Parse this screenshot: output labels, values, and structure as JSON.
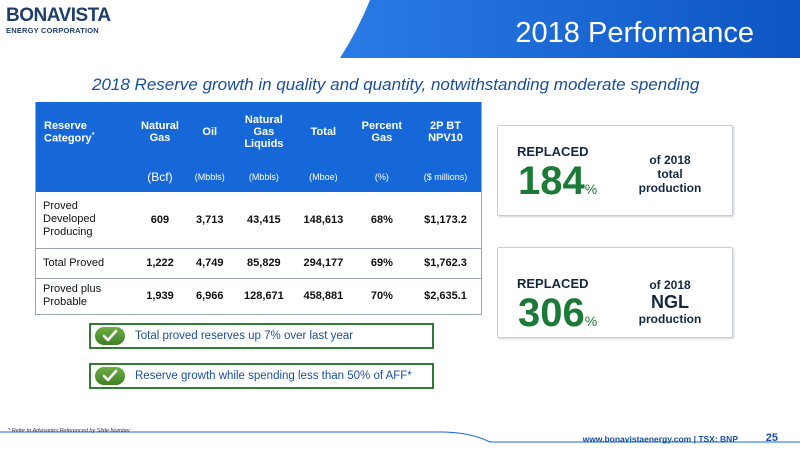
{
  "logo": {
    "name": "BONAVISTA",
    "sub": "ENERGY CORPORATION"
  },
  "header": {
    "title": "2018 Performance"
  },
  "subtitle": "2018 Reserve growth in quality and quantity, notwithstanding moderate spending",
  "table": {
    "headers": [
      "Reserve Category",
      "Natural Gas",
      "Oil",
      "Natural Gas Liquids",
      "Total",
      "Percent Gas",
      "2P BT NPV10"
    ],
    "header_footnote": "*",
    "units": [
      "(Bcf)",
      "(Mbbls)",
      "(Mbbls)",
      "(Mboe)",
      "(%)",
      "($ millions)"
    ],
    "rows": [
      {
        "category": "Proved Developed Producing",
        "values": [
          "609",
          "3,713",
          "43,415",
          "148,613",
          "68%",
          "$1,173.2"
        ]
      },
      {
        "category": "Total Proved",
        "values": [
          "1,222",
          "4,749",
          "85,829",
          "294,177",
          "69%",
          "$1,762.3"
        ]
      },
      {
        "category": "Proved plus Probable",
        "values": [
          "1,939",
          "6,966",
          "128,671",
          "458,881",
          "70%",
          "$2,635.1"
        ]
      }
    ]
  },
  "callouts": [
    "Total proved reserves up 7% over last year",
    "Reserve growth while spending less than 50% of AFF*"
  ],
  "cards": [
    {
      "replaced": "REPLACED",
      "number": "184",
      "pct": "%",
      "line1": "of 2018",
      "line2": "total",
      "line3": "production"
    },
    {
      "replaced": "REPLACED",
      "number": "306",
      "pct": "%",
      "line1": "of 2018",
      "line2": "NGL",
      "line3": "production"
    }
  ],
  "footer": {
    "note": "* Refer to Advisories Referenced by Slide Number",
    "url": "www.bonavistaenergy.com  |  TSX: BNP",
    "page": "25"
  },
  "colors": {
    "brand_blue": "#1668d8",
    "accent_green": "#1b7a35",
    "navy": "#1f3f6b"
  }
}
